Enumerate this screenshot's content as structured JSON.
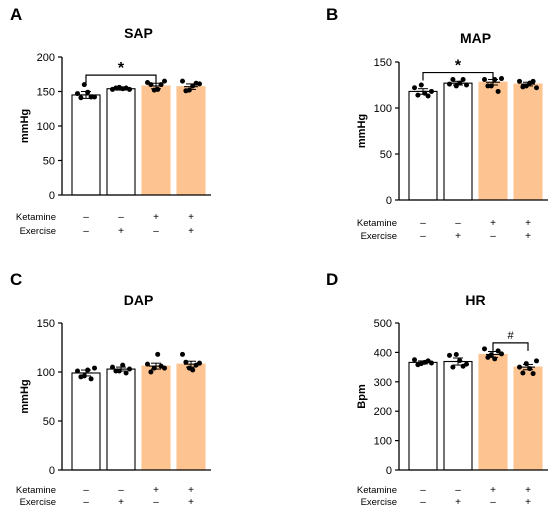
{
  "colors": {
    "ketamine_fill": "#FDC491",
    "control_fill": "#ffffff",
    "outline": "#000000"
  },
  "row_labels": [
    "Ketamine",
    "Exercise"
  ],
  "row_signs": [
    [
      "–",
      "–",
      "+",
      "+"
    ],
    [
      "–",
      "+",
      "–",
      "+"
    ]
  ],
  "chart_data": [
    {
      "letter": "A",
      "title": "SAP",
      "ylabel": "mmHg",
      "type": "bar",
      "ylim": [
        0,
        200
      ],
      "yticks": [
        0,
        50,
        100,
        150,
        200
      ],
      "grid": false,
      "values": [
        145,
        154,
        158,
        157
      ],
      "errors": [
        5,
        2,
        4,
        4
      ],
      "points": [
        [
          147,
          141,
          160,
          149,
          142,
          142
        ],
        [
          153,
          155,
          156,
          154,
          155,
          153
        ],
        [
          163,
          160,
          152,
          153,
          160,
          165
        ],
        [
          165,
          151,
          152,
          158,
          162,
          161
        ]
      ],
      "annotations": [
        {
          "text": "*",
          "from": 0,
          "to": 2
        }
      ]
    },
    {
      "letter": "B",
      "title": "MAP",
      "ylabel": "mmHg",
      "type": "bar",
      "ylim": [
        0,
        150
      ],
      "yticks": [
        0,
        50,
        100,
        150
      ],
      "grid": false,
      "values": [
        118,
        127,
        128,
        126
      ],
      "errors": [
        3,
        2,
        3,
        2
      ],
      "points": [
        [
          122,
          114,
          125,
          116,
          113,
          118
        ],
        [
          126,
          131,
          124,
          127,
          131,
          125
        ],
        [
          131,
          124,
          124,
          131,
          118,
          132
        ],
        [
          129,
          123,
          124,
          127,
          129,
          122
        ]
      ],
      "annotations": [
        {
          "text": "*",
          "from": 0,
          "to": 2
        }
      ]
    },
    {
      "letter": "C",
      "title": "DAP",
      "ylabel": "mmHg",
      "type": "bar",
      "ylim": [
        0,
        150
      ],
      "yticks": [
        0,
        50,
        100,
        150
      ],
      "grid": false,
      "values": [
        99,
        103,
        106,
        108
      ],
      "errors": [
        3,
        2,
        3,
        3
      ],
      "points": [
        [
          101,
          95,
          96,
          102,
          93,
          104
        ],
        [
          105,
          101,
          101,
          107,
          99,
          103
        ],
        [
          108,
          100,
          104,
          118,
          106,
          104
        ],
        [
          118,
          110,
          104,
          102,
          107,
          109
        ]
      ],
      "annotations": []
    },
    {
      "letter": "D",
      "title": "HR",
      "ylabel": "Bpm",
      "type": "bar",
      "ylim": [
        0,
        500
      ],
      "yticks": [
        0,
        100,
        200,
        300,
        400,
        500
      ],
      "grid": false,
      "values": [
        366,
        369,
        393,
        350
      ],
      "errors": [
        5,
        12,
        10,
        9
      ],
      "points": [
        [
          375,
          358,
          362,
          366,
          371,
          364
        ],
        [
          390,
          350,
          393,
          372,
          353,
          360
        ],
        [
          412,
          383,
          392,
          378,
          405,
          395
        ],
        [
          350,
          330,
          362,
          345,
          328,
          371
        ]
      ],
      "annotations": [
        {
          "text": "#",
          "from": 2,
          "to": 3
        }
      ]
    }
  ]
}
